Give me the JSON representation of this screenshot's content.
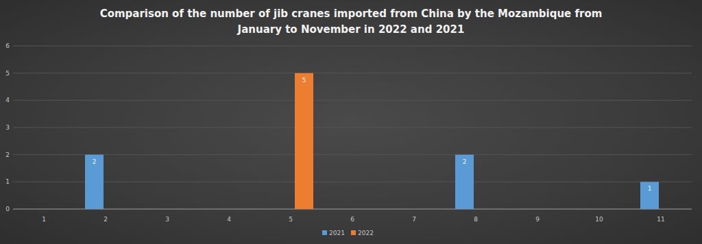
{
  "chart_data": {
    "type": "bar",
    "title": "Comparison of the number of jib cranes imported from China by the Mozambique from January to November in 2022 and 2021",
    "categories": [
      "1",
      "2",
      "3",
      "4",
      "5",
      "6",
      "7",
      "8",
      "9",
      "10",
      "11"
    ],
    "series": [
      {
        "name": "2021",
        "color": "#5b9bd5",
        "values": [
          null,
          2,
          null,
          null,
          null,
          null,
          null,
          2,
          null,
          null,
          1
        ]
      },
      {
        "name": "2022",
        "color": "#ed7d31",
        "values": [
          null,
          null,
          null,
          null,
          5,
          null,
          null,
          null,
          null,
          null,
          null
        ]
      }
    ],
    "ylim": [
      0,
      6
    ],
    "yticks": [
      0,
      1,
      2,
      3,
      4,
      5,
      6
    ],
    "grid": true,
    "legend": "bottom",
    "data_labels": true
  }
}
